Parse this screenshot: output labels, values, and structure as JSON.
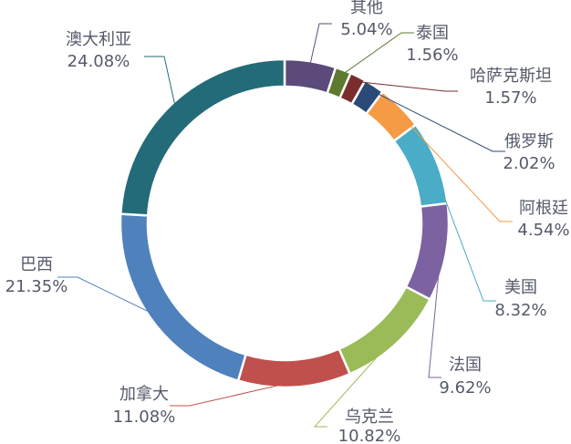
{
  "chart_data": {
    "type": "pie",
    "variant": "donut",
    "title": "",
    "legend": "none",
    "slices": [
      {
        "name": "其他",
        "value": 5.04,
        "label": "5.04%",
        "color": "#5b4a7a"
      },
      {
        "name": "泰国",
        "value": 1.56,
        "label": "1.56%",
        "color": "#5e7a2e"
      },
      {
        "name": "哈萨克斯坦",
        "value": 1.57,
        "label": "1.57%",
        "color": "#7b2c2c"
      },
      {
        "name": "俄罗斯",
        "value": 2.02,
        "label": "2.02%",
        "color": "#2b4a78"
      },
      {
        "name": "阿根廷",
        "value": 4.54,
        "label": "4.54%",
        "color": "#f59a45"
      },
      {
        "name": "美国",
        "value": 8.32,
        "label": "8.32%",
        "color": "#4aacc6"
      },
      {
        "name": "法国",
        "value": 9.62,
        "label": "9.62%",
        "color": "#7c62a0"
      },
      {
        "name": "乌克兰",
        "value": 10.82,
        "label": "10.82%",
        "color": "#9bbb59"
      },
      {
        "name": "加拿大",
        "value": 11.08,
        "label": "11.08%",
        "color": "#c0504d"
      },
      {
        "name": "巴西",
        "value": 21.35,
        "label": "21.35%",
        "color": "#4f81bd"
      },
      {
        "name": "澳大利亚",
        "value": 24.08,
        "label": "24.08%",
        "color": "#236b78"
      }
    ]
  }
}
